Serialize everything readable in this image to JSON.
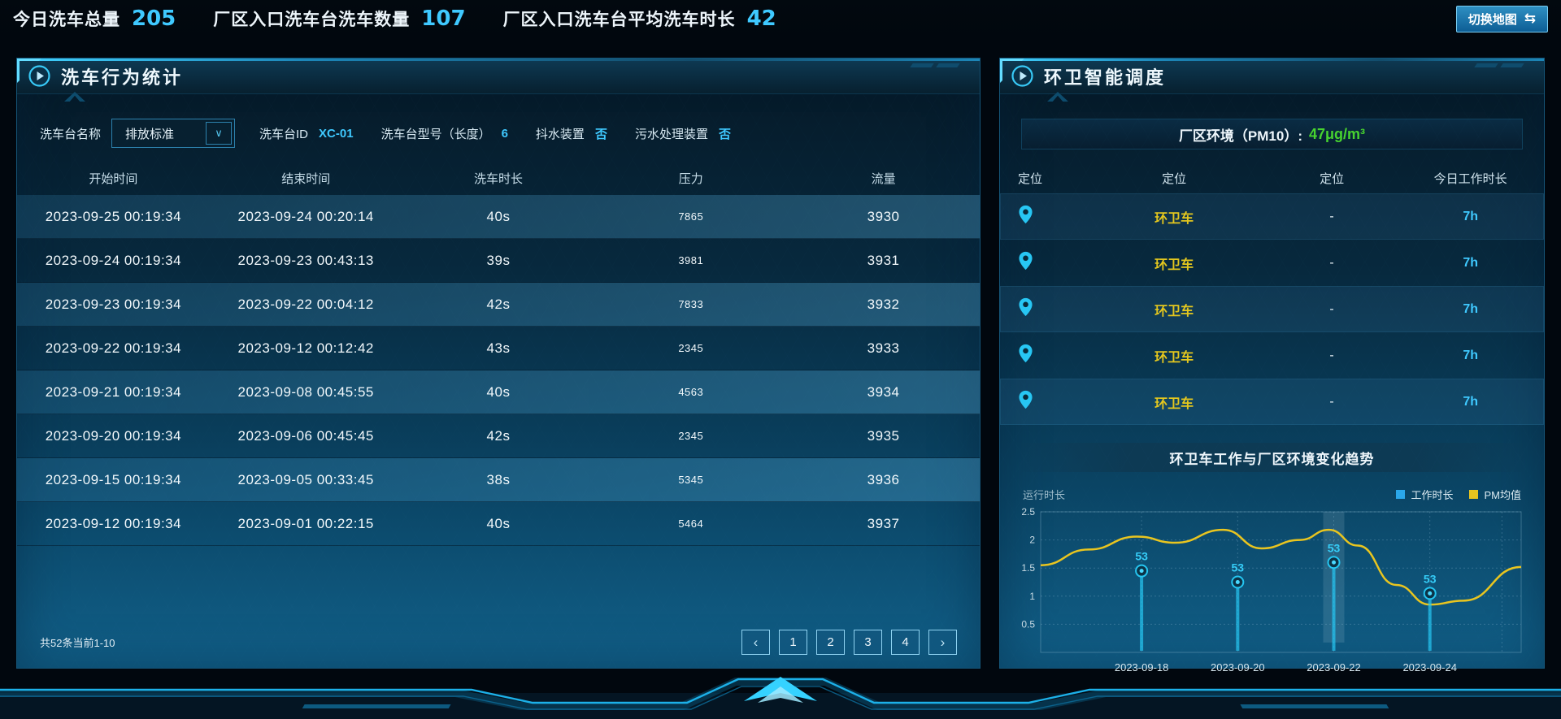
{
  "topbar": {
    "stats": [
      {
        "label": "今日洗车总量",
        "value": "205"
      },
      {
        "label": "厂区入口洗车台洗车数量",
        "value": "107"
      },
      {
        "label": "厂区入口洗车台平均洗车时长",
        "value": "42"
      }
    ],
    "map_button": "切换地图",
    "map_button_icon": "⇆"
  },
  "left_panel": {
    "title": "洗车行为统计",
    "filters": {
      "name_label": "洗车台名称",
      "name_value": "排放标准",
      "dropdown_icon": "∨",
      "id_label": "洗车台ID",
      "id_value": "XC-01",
      "model_label": "洗车台型号（长度）",
      "model_value": "6",
      "shake_label": "抖水装置",
      "shake_value": "否",
      "sewage_label": "污水处理装置",
      "sewage_value": "否"
    },
    "table": {
      "headers": [
        "开始时间",
        "结束时间",
        "洗车时长",
        "压力",
        "流量"
      ],
      "rows": [
        [
          "2023-09-25 00:19:34",
          "2023-09-24 00:20:14",
          "40s",
          "7865",
          "3930"
        ],
        [
          "2023-09-24 00:19:34",
          "2023-09-23 00:43:13",
          "39s",
          "3981",
          "3931"
        ],
        [
          "2023-09-23 00:19:34",
          "2023-09-22 00:04:12",
          "42s",
          "7833",
          "3932"
        ],
        [
          "2023-09-22 00:19:34",
          "2023-09-12 00:12:42",
          "43s",
          "2345",
          "3933"
        ],
        [
          "2023-09-21 00:19:34",
          "2023-09-08 00:45:55",
          "40s",
          "4563",
          "3934"
        ],
        [
          "2023-09-20 00:19:34",
          "2023-09-06 00:45:45",
          "42s",
          "2345",
          "3935"
        ],
        [
          "2023-09-15 00:19:34",
          "2023-09-05 00:33:45",
          "38s",
          "5345",
          "3936"
        ],
        [
          "2023-09-12 00:19:34",
          "2023-09-01 00:22:15",
          "40s",
          "5464",
          "3937"
        ]
      ]
    },
    "pagination": {
      "summary": "共52条当前1-10",
      "prev": "‹",
      "next": "›",
      "pages": [
        "1",
        "2",
        "3",
        "4"
      ]
    }
  },
  "right_panel": {
    "title": "环卫智能调度",
    "pm_label": "厂区环境（PM10）:",
    "pm_value": "47μg/m³",
    "table": {
      "headers": [
        "定位",
        "定位",
        "定位",
        "今日工作时长"
      ],
      "rows": [
        {
          "vehicle": "环卫车",
          "dash": "-",
          "hours": "7h"
        },
        {
          "vehicle": "环卫车",
          "dash": "-",
          "hours": "7h"
        },
        {
          "vehicle": "环卫车",
          "dash": "-",
          "hours": "7h"
        },
        {
          "vehicle": "环卫车",
          "dash": "-",
          "hours": "7h"
        },
        {
          "vehicle": "环卫车",
          "dash": "-",
          "hours": "7h"
        }
      ]
    },
    "chart_title": "环卫车工作与厂区环境变化趋势"
  },
  "colors": {
    "accent_cyan": "#3fc9ff",
    "pm_green": "#47d32f",
    "vehicle_yellow": "#e4c71e",
    "work_series_blue": "#25c6f2",
    "pm_series_yellow": "#e9c51f"
  },
  "chart_data": {
    "type": "line",
    "title": "环卫车工作与厂区环境变化趋势",
    "ylabel": "运行时长",
    "ylim": [
      0,
      2.5
    ],
    "yticks": [
      0.5,
      1,
      1.5,
      2,
      2.5
    ],
    "categories": [
      "2023-09-18",
      "2023-09-20",
      "2023-09-22",
      "2023-09-24"
    ],
    "category_x": [
      0.21,
      0.41,
      0.61,
      0.81
    ],
    "extra_gridline_x": 0.96,
    "highlight_index": 2,
    "grid": true,
    "legend_position": "top-right",
    "legend": [
      {
        "name": "工作时长",
        "color": "#2aa7ea"
      },
      {
        "name": "PM均值",
        "color": "#e9c51f"
      }
    ],
    "series": [
      {
        "name": "工作时长",
        "type": "lollipop",
        "color": "#25c6f2",
        "values": [
          1.45,
          1.25,
          1.6,
          1.05
        ],
        "point_labels": [
          "53",
          "53",
          "53",
          "53"
        ]
      },
      {
        "name": "PM均值",
        "type": "smooth_line",
        "color": "#e9c51f",
        "points": [
          [
            0,
            1.55
          ],
          [
            0.1,
            1.83
          ],
          [
            0.2,
            2.06
          ],
          [
            0.28,
            1.95
          ],
          [
            0.38,
            2.18
          ],
          [
            0.46,
            1.85
          ],
          [
            0.54,
            2.0
          ],
          [
            0.6,
            2.18
          ],
          [
            0.66,
            1.9
          ],
          [
            0.74,
            1.2
          ],
          [
            0.81,
            0.85
          ],
          [
            0.88,
            0.92
          ],
          [
            1.0,
            1.52
          ]
        ]
      }
    ]
  }
}
